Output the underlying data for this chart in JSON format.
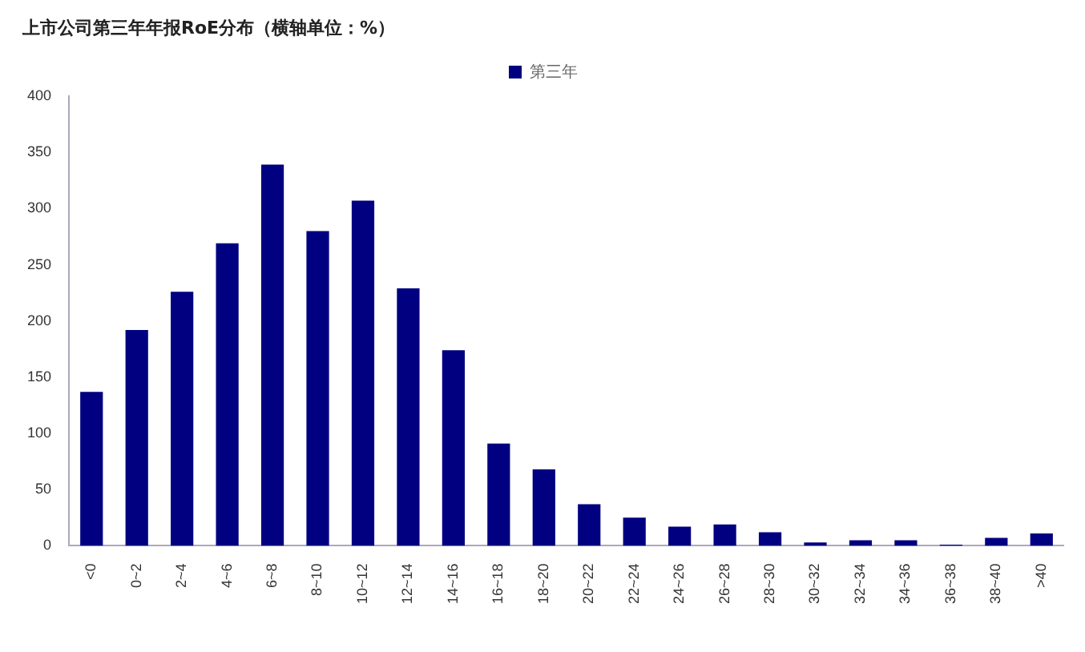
{
  "chart_data": {
    "type": "bar",
    "title": "上市公司第三年年报RoE分布（横轴单位：%）",
    "categories": [
      "<0",
      "0~2",
      "2~4",
      "4~6",
      "6~8",
      "8~10",
      "10~12",
      "12~14",
      "14~16",
      "16~18",
      "18~20",
      "20~22",
      "22~24",
      "24~26",
      "26~28",
      "28~30",
      "30~32",
      "32~34",
      "34~36",
      "36~38",
      "38~40",
      ">40"
    ],
    "series": [
      {
        "name": "第三年",
        "color": "#000080",
        "values": [
          137,
          192,
          226,
          269,
          339,
          280,
          307,
          229,
          174,
          91,
          68,
          37,
          25,
          17,
          19,
          12,
          3,
          5,
          5,
          1,
          7,
          11
        ]
      }
    ],
    "ylim": [
      0,
      400
    ],
    "yticks": [
      0,
      50,
      100,
      150,
      200,
      250,
      300,
      350,
      400
    ],
    "grid": false,
    "legend": "top"
  }
}
